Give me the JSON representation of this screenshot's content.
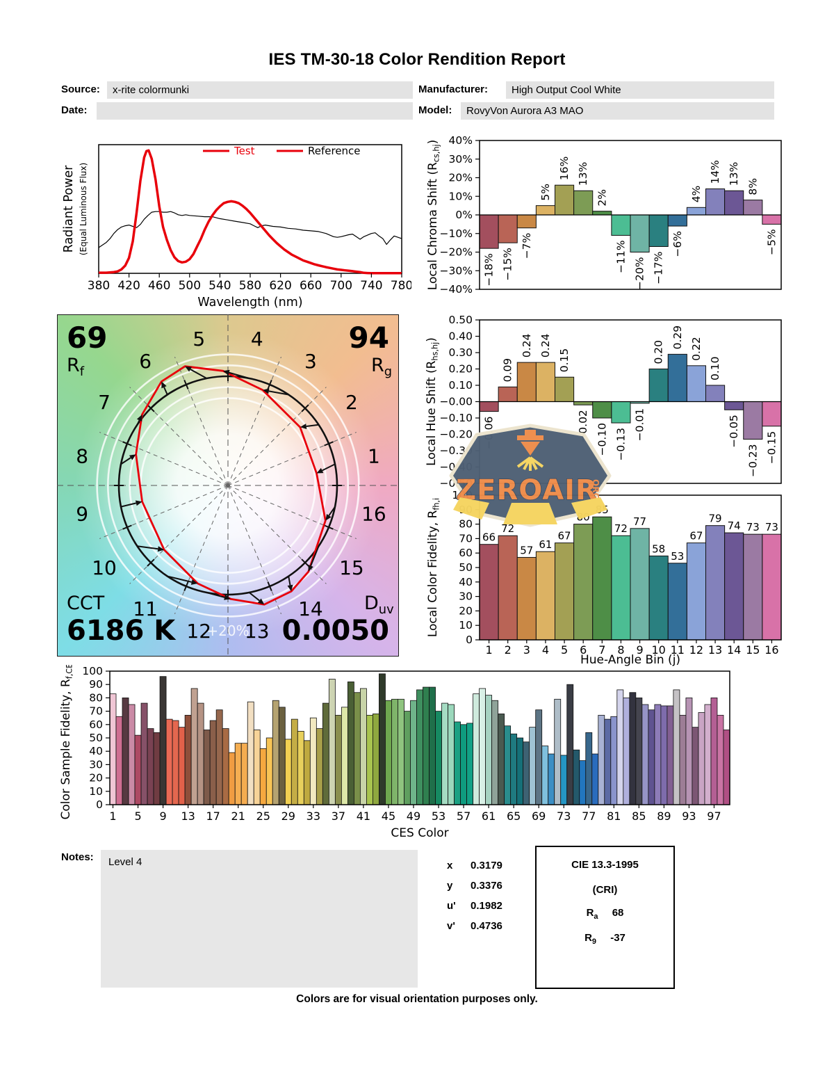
{
  "header": {
    "title": "IES TM-30-18 Color Rendition Report"
  },
  "info": {
    "source_label": "Source:",
    "source": "x-rite colormunki",
    "date_label": "Date:",
    "date": "",
    "manufacturer_label": "Manufacturer:",
    "manufacturer": "High Output Cool White",
    "model_label": "Model:",
    "model": "RovyVon Aurora A3 MAO"
  },
  "palette": {
    "test_color": "#e8000b",
    "reference_color": "#000000",
    "hue_bin_colors": [
      "#a34f5e",
      "#b96456",
      "#c98845",
      "#dcb263",
      "#a3a054",
      "#7d9c55",
      "#4e8e47",
      "#4cbd93",
      "#6fb4a5",
      "#2a8080",
      "#336f99",
      "#8aa3d8",
      "#8381bb",
      "#6c5795",
      "#9b7aa3",
      "#d872a8"
    ],
    "header_box_gray": "#e3e3e3",
    "notes_box_gray": "#e7e7e7"
  },
  "chart_data": [
    {
      "id": "spd",
      "type": "line",
      "xlabel": "Wavelength (nm)",
      "ylabel": "Radiant Power",
      "ylabel2": "(Equal Luminous Flux)",
      "xlim": [
        380,
        780
      ],
      "ylim": [
        0,
        1
      ],
      "x_ticks": [
        380,
        420,
        460,
        500,
        540,
        580,
        620,
        660,
        700,
        740,
        780
      ],
      "grid": false,
      "legend_position": "top-right",
      "series": [
        {
          "name": "Test",
          "color": "#e8000b",
          "width": 3.5,
          "points": [
            [
              380,
              0.005
            ],
            [
              390,
              0.005
            ],
            [
              400,
              0.01
            ],
            [
              405,
              0.015
            ],
            [
              410,
              0.03
            ],
            [
              415,
              0.06
            ],
            [
              420,
              0.12
            ],
            [
              425,
              0.25
            ],
            [
              430,
              0.47
            ],
            [
              435,
              0.72
            ],
            [
              440,
              0.9
            ],
            [
              443,
              0.95
            ],
            [
              446,
              0.955
            ],
            [
              450,
              0.89
            ],
            [
              455,
              0.73
            ],
            [
              460,
              0.52
            ],
            [
              465,
              0.36
            ],
            [
              470,
              0.26
            ],
            [
              475,
              0.18
            ],
            [
              480,
              0.125
            ],
            [
              485,
              0.095
            ],
            [
              490,
              0.085
            ],
            [
              495,
              0.09
            ],
            [
              500,
              0.11
            ],
            [
              505,
              0.15
            ],
            [
              510,
              0.21
            ],
            [
              515,
              0.27
            ],
            [
              520,
              0.34
            ],
            [
              525,
              0.4
            ],
            [
              530,
              0.45
            ],
            [
              535,
              0.49
            ],
            [
              540,
              0.52
            ],
            [
              545,
              0.545
            ],
            [
              550,
              0.555
            ],
            [
              555,
              0.56
            ],
            [
              560,
              0.555
            ],
            [
              565,
              0.545
            ],
            [
              570,
              0.525
            ],
            [
              575,
              0.5
            ],
            [
              580,
              0.47
            ],
            [
              585,
              0.435
            ],
            [
              590,
              0.4
            ],
            [
              595,
              0.365
            ],
            [
              600,
              0.33
            ],
            [
              605,
              0.295
            ],
            [
              610,
              0.265
            ],
            [
              615,
              0.235
            ],
            [
              620,
              0.21
            ],
            [
              625,
              0.185
            ],
            [
              630,
              0.165
            ],
            [
              635,
              0.145
            ],
            [
              640,
              0.13
            ],
            [
              645,
              0.115
            ],
            [
              650,
              0.1
            ],
            [
              655,
              0.09
            ],
            [
              660,
              0.08
            ],
            [
              665,
              0.07
            ],
            [
              670,
              0.062
            ],
            [
              675,
              0.055
            ],
            [
              680,
              0.048
            ],
            [
              685,
              0.042
            ],
            [
              690,
              0.036
            ],
            [
              695,
              0.03
            ],
            [
              700,
              0.027
            ],
            [
              705,
              0.023
            ],
            [
              710,
              0.02
            ],
            [
              715,
              0.017
            ],
            [
              720,
              0.013
            ],
            [
              725,
              0.01
            ],
            [
              730,
              0.004
            ],
            [
              735,
              0.002
            ],
            [
              740,
              0.001
            ],
            [
              780,
              0.001
            ]
          ]
        },
        {
          "name": "Reference",
          "color": "#000000",
          "width": 1.2,
          "points": [
            [
              380,
              0.2
            ],
            [
              385,
              0.22
            ],
            [
              390,
              0.24
            ],
            [
              395,
              0.27
            ],
            [
              400,
              0.31
            ],
            [
              405,
              0.34
            ],
            [
              410,
              0.36
            ],
            [
              415,
              0.37
            ],
            [
              420,
              0.375
            ],
            [
              425,
              0.365
            ],
            [
              430,
              0.355
            ],
            [
              435,
              0.38
            ],
            [
              440,
              0.42
            ],
            [
              445,
              0.45
            ],
            [
              450,
              0.475
            ],
            [
              455,
              0.48
            ],
            [
              460,
              0.48
            ],
            [
              465,
              0.475
            ],
            [
              470,
              0.475
            ],
            [
              475,
              0.48
            ],
            [
              480,
              0.47
            ],
            [
              485,
              0.455
            ],
            [
              490,
              0.45
            ],
            [
              495,
              0.455
            ],
            [
              500,
              0.45
            ],
            [
              510,
              0.445
            ],
            [
              520,
              0.44
            ],
            [
              530,
              0.44
            ],
            [
              540,
              0.425
            ],
            [
              550,
              0.415
            ],
            [
              560,
              0.405
            ],
            [
              570,
              0.395
            ],
            [
              580,
              0.385
            ],
            [
              585,
              0.37
            ],
            [
              590,
              0.355
            ],
            [
              595,
              0.37
            ],
            [
              600,
              0.375
            ],
            [
              610,
              0.365
            ],
            [
              620,
              0.36
            ],
            [
              630,
              0.35
            ],
            [
              640,
              0.345
            ],
            [
              650,
              0.335
            ],
            [
              660,
              0.33
            ],
            [
              670,
              0.325
            ],
            [
              680,
              0.31
            ],
            [
              690,
              0.285
            ],
            [
              695,
              0.28
            ],
            [
              700,
              0.285
            ],
            [
              710,
              0.3
            ],
            [
              715,
              0.305
            ],
            [
              720,
              0.285
            ],
            [
              725,
              0.265
            ],
            [
              730,
              0.285
            ],
            [
              740,
              0.31
            ],
            [
              745,
              0.315
            ],
            [
              750,
              0.29
            ],
            [
              755,
              0.27
            ],
            [
              760,
              0.225
            ],
            [
              765,
              0.26
            ],
            [
              770,
              0.29
            ],
            [
              775,
              0.28
            ],
            [
              780,
              0.27
            ]
          ]
        }
      ]
    },
    {
      "id": "chroma_shift",
      "type": "bar",
      "ylabel_parts": {
        "pre": "Local Chroma Shift (R",
        "sub": "cs,hj",
        "post": ")"
      },
      "ylim": [
        -40,
        40
      ],
      "ytick_step": 10,
      "ytick_format": "percent",
      "value_labels": "rotated",
      "label_format": "percent",
      "categories": [
        1,
        2,
        3,
        4,
        5,
        6,
        7,
        8,
        9,
        10,
        11,
        12,
        13,
        14,
        15,
        16
      ],
      "values": [
        -18,
        -15,
        -7,
        5,
        16,
        13,
        2,
        -11,
        -20,
        -17,
        -6,
        4,
        14,
        13,
        8,
        -5
      ]
    },
    {
      "id": "hue_shift",
      "type": "bar",
      "ylabel_parts": {
        "pre": "Local Hue Shift (R",
        "sub": "hs,hj",
        "post": ")"
      },
      "ylim": [
        -0.5,
        0.5
      ],
      "ytick_step": 0.1,
      "ytick_format": "fixed2",
      "value_labels": "rotated",
      "label_format": "fixed2",
      "categories": [
        1,
        2,
        3,
        4,
        5,
        6,
        7,
        8,
        9,
        10,
        11,
        12,
        13,
        14,
        15,
        16
      ],
      "values": [
        -0.06,
        0.09,
        0.24,
        0.24,
        0.15,
        -0.02,
        -0.1,
        -0.13,
        -0.01,
        0.2,
        0.29,
        0.22,
        0.1,
        -0.05,
        -0.23,
        -0.15
      ]
    },
    {
      "id": "cvg",
      "type": "color_vector_graphic",
      "rf_value": "69",
      "rf_label": "R",
      "rf_sub": "f",
      "rg_value": "94",
      "rg_label": "R",
      "rg_sub": "g",
      "cct_label": "CCT",
      "cct_value": "6186 K",
      "duv_label": "D",
      "duv_sub": "uv",
      "duv_value": "0.0050",
      "ring_label": "+20%",
      "bin_labels": [
        "1",
        "2",
        "3",
        "4",
        "5",
        "6",
        "7",
        "8",
        "9",
        "10",
        "11",
        "12",
        "13",
        "14",
        "15",
        "16"
      ]
    },
    {
      "id": "local_fidelity",
      "type": "bar",
      "ylabel_parts": {
        "pre": "Local Color Fidelity, R",
        "sub": "fh,i"
      },
      "xlabel": "Hue-Angle Bin (j)",
      "ylim": [
        0,
        100
      ],
      "ytick_step": 10,
      "ytick_format": "int",
      "value_labels": "top",
      "x_tick_labels": [
        "1",
        "2",
        "3",
        "4",
        "5",
        "6",
        "7",
        "8",
        "9",
        "10",
        "11",
        "12",
        "13",
        "14",
        "15",
        "16"
      ],
      "categories": [
        1,
        2,
        3,
        4,
        5,
        6,
        7,
        8,
        9,
        10,
        11,
        12,
        13,
        14,
        15,
        16
      ],
      "values": [
        66,
        72,
        57,
        61,
        67,
        80,
        85,
        72,
        77,
        58,
        53,
        67,
        79,
        74,
        73,
        73
      ]
    },
    {
      "id": "ces_fidelity",
      "type": "bar",
      "ylabel_parts": {
        "pre": "Color Sample Fidelity, R",
        "sub": "f,CESi"
      },
      "xlabel": "CES Color",
      "ylim": [
        0,
        100
      ],
      "ytick_step": 10,
      "ytick_format": "int",
      "value_labels": "none",
      "x_ticks": [
        1,
        5,
        9,
        13,
        17,
        21,
        25,
        29,
        33,
        37,
        41,
        45,
        49,
        53,
        57,
        61,
        65,
        69,
        73,
        77,
        81,
        85,
        89,
        93,
        97
      ],
      "values": [
        83,
        66,
        80,
        75,
        52,
        76,
        57,
        54,
        96,
        64,
        63,
        58,
        67,
        87,
        76,
        56,
        63,
        71,
        57,
        39,
        46,
        46,
        77,
        56,
        42,
        50,
        78,
        73,
        49,
        64,
        55,
        48,
        65,
        57,
        76,
        94,
        67,
        73,
        92,
        84,
        87,
        67,
        68,
        98,
        78,
        79,
        79,
        70,
        78,
        86,
        88,
        88,
        70,
        76,
        75,
        62,
        60,
        61,
        83,
        87,
        82,
        78,
        68,
        59,
        53,
        50,
        47,
        58,
        71,
        44,
        38,
        79,
        37,
        90,
        41,
        33,
        54,
        38,
        67,
        64,
        66,
        86,
        80,
        84,
        80,
        75,
        71,
        75,
        74,
        74,
        86,
        67,
        80,
        58,
        69,
        75,
        80,
        67,
        56
      ],
      "colors": [
        "#f0c6d5",
        "#cf6f92",
        "#573a42",
        "#ca8aa6",
        "#ad4a64",
        "#865168",
        "#7a4253",
        "#703c42",
        "#3a3634",
        "#ea6a55",
        "#e4674f",
        "#e2614a",
        "#8f4f3a",
        "#c0a191",
        "#b59384",
        "#7d5a4a",
        "#8a5f4a",
        "#96674d",
        "#a96b44",
        "#f09c42",
        "#f5ae52",
        "#f5ac50",
        "#f2dfc2",
        "#f7d398",
        "#f5a83f",
        "#f7c455",
        "#b5a371",
        "#6b6140",
        "#f2d152",
        "#c4ad46",
        "#e8d05c",
        "#bfa93f",
        "#f2e9c0",
        "#a89f4a",
        "#5f6b3a",
        "#cdd4b2",
        "#8a8f4f",
        "#dde8a8",
        "#4a5f35",
        "#7a8f4a",
        "#c8d4a8",
        "#a8c44f",
        "#8fa83f",
        "#2f3a2a",
        "#6fa84f",
        "#7fb46a",
        "#8fc47f",
        "#5f9f5f",
        "#6fb48a",
        "#3f8f5f",
        "#2f7f4f",
        "#1f6f4a",
        "#168a62",
        "#a5dcc3",
        "#9bd8bc",
        "#1ba183",
        "#0f9b7f",
        "#12a186",
        "#cfeadd",
        "#d9f0e6",
        "#a7d3c2",
        "#8fa399",
        "#4a5a50",
        "#2a8d8d",
        "#1f7a80",
        "#157078",
        "#3d6273",
        "#9fc3d3",
        "#5d7585",
        "#7fc0dd",
        "#3b8ec4",
        "#aebdc8",
        "#2596c4",
        "#3a3d45",
        "#24596b",
        "#2276be",
        "#38678c",
        "#2a6cbd",
        "#a9b2d4",
        "#5c6aa4",
        "#8a94cc",
        "#d4d4ec",
        "#b0b0dd",
        "#33333f",
        "#45454f",
        "#9694c6",
        "#5f5390",
        "#8d7cb8",
        "#7e6cac",
        "#825f92",
        "#c5c2c5",
        "#9d7d96",
        "#b794b4",
        "#7c5674",
        "#c9a4c4",
        "#d3afcd",
        "#b45f94",
        "#ca74a4",
        "#b04f84"
      ]
    }
  ],
  "watermark": {
    "text": "ZEROAIR",
    "suffix": "ORG",
    "body_color": "#4e5f74",
    "text_color": "#ee8c4a",
    "beam_color": "#f5d45f",
    "border_color": "#ece4cd",
    "outline_color": "#36455a"
  },
  "notes": {
    "label": "Notes:",
    "value": "Level 4"
  },
  "chromaticity": [
    {
      "label": "x",
      "value": "0.3179"
    },
    {
      "label": "y",
      "value": "0.3376"
    },
    {
      "label": "u'",
      "value": "0.1982"
    },
    {
      "label": "v'",
      "value": "0.4736"
    }
  ],
  "cie": {
    "title": "CIE 13.3-1995",
    "subtitle": "(CRI)",
    "rows": [
      {
        "label": "R",
        "sub": "a",
        "value": "68"
      },
      {
        "label": "R",
        "sub": "9",
        "value": "-37"
      }
    ]
  },
  "footer": "Colors are for visual orientation purposes only."
}
